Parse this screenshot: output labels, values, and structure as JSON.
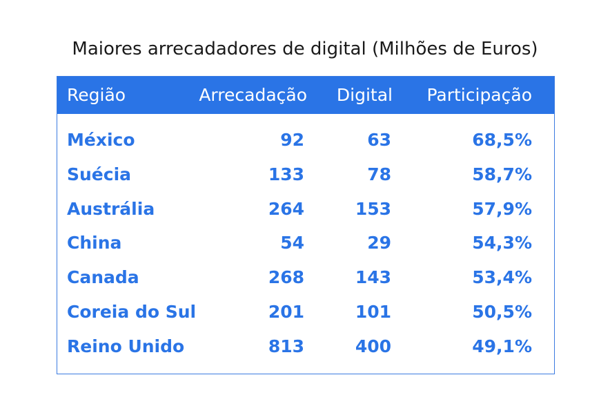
{
  "chart_data": {
    "type": "table",
    "title": "Maiores arrecadadores de digital (Milhões de Euros)",
    "columns": [
      "Região",
      "Arrecadação",
      "Digital",
      "Participação"
    ],
    "rows": [
      {
        "regiao": "México",
        "arrecadacao": "92",
        "digital": "63",
        "participacao": "68,5%"
      },
      {
        "regiao": "Suécia",
        "arrecadacao": "133",
        "digital": "78",
        "participacao": "58,7%"
      },
      {
        "regiao": "Austrália",
        "arrecadacao": "264",
        "digital": "153",
        "participacao": "57,9%"
      },
      {
        "regiao": "China",
        "arrecadacao": "54",
        "digital": "29",
        "participacao": "54,3%"
      },
      {
        "regiao": "Canada",
        "arrecadacao": "268",
        "digital": "143",
        "participacao": "53,4%"
      },
      {
        "regiao": "Coreia do Sul",
        "arrecadacao": "201",
        "digital": "101",
        "participacao": "50,5%"
      },
      {
        "regiao": "Reino Unido",
        "arrecadacao": "813",
        "digital": "400",
        "participacao": "49,1%"
      }
    ]
  },
  "colors": {
    "header_bg": "#2a74e6",
    "header_text": "#ffffff",
    "cell_text": "#2a74e6",
    "border": "#3a7ae0",
    "title_text": "#1a1a1a"
  }
}
